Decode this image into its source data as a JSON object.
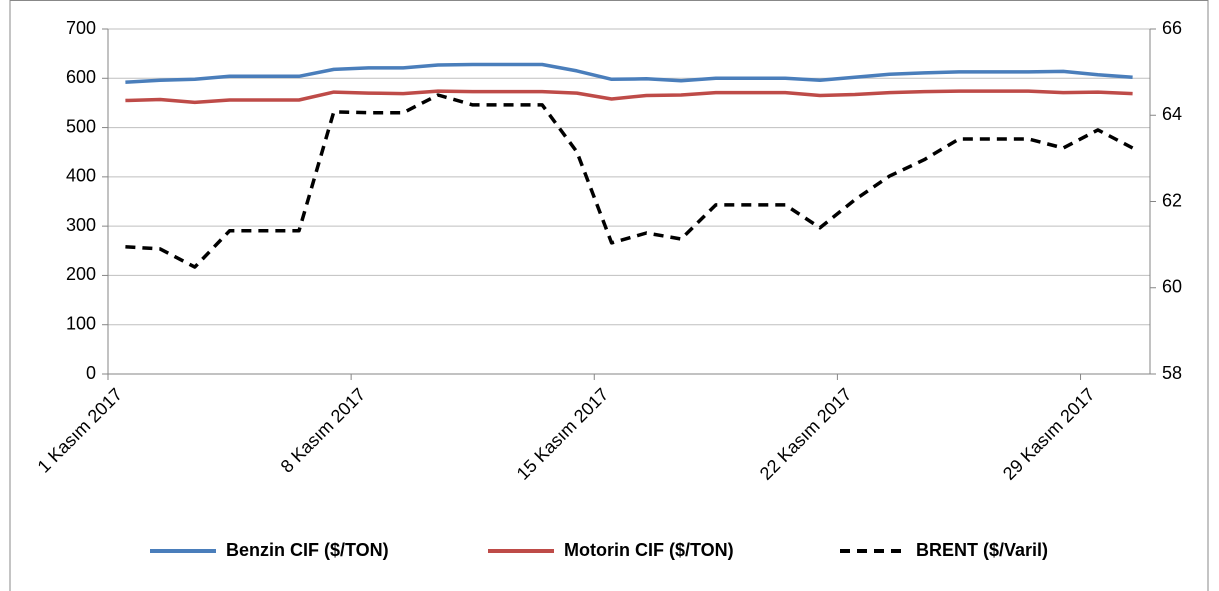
{
  "chart_data": {
    "type": "line",
    "x": [
      "2017-11-01",
      "2017-11-02",
      "2017-11-03",
      "2017-11-04",
      "2017-11-05",
      "2017-11-06",
      "2017-11-07",
      "2017-11-08",
      "2017-11-09",
      "2017-11-10",
      "2017-11-11",
      "2017-11-12",
      "2017-11-13",
      "2017-11-14",
      "2017-11-15",
      "2017-11-16",
      "2017-11-17",
      "2017-11-18",
      "2017-11-19",
      "2017-11-20",
      "2017-11-21",
      "2017-11-22",
      "2017-11-23",
      "2017-11-24",
      "2017-11-25",
      "2017-11-26",
      "2017-11-27",
      "2017-11-28",
      "2017-11-29",
      "2017-11-30"
    ],
    "xlim": [
      "2017-11-01",
      "2017-12-01"
    ],
    "xticks": [
      {
        "value": "2017-11-01",
        "label": "1 Kasım 2017"
      },
      {
        "value": "2017-11-08",
        "label": "8 Kasım 2017"
      },
      {
        "value": "2017-11-15",
        "label": "15 Kasım 2017"
      },
      {
        "value": "2017-11-22",
        "label": "22 Kasım 2017"
      },
      {
        "value": "2017-11-29",
        "label": "29 Kasım 2017"
      }
    ],
    "ylim": [
      0,
      700
    ],
    "yticks": [
      0,
      100,
      200,
      300,
      400,
      500,
      600,
      700
    ],
    "y2lim": [
      58,
      66
    ],
    "y2ticks": [
      58,
      60,
      62,
      64,
      66
    ],
    "grid": true,
    "legend": "bottom",
    "series": [
      {
        "name": "Benzin CIF ($/TON)",
        "color": "#4a7ebb",
        "axis": "y",
        "line_style": "solid",
        "values": [
          592,
          596,
          598,
          604,
          604,
          604,
          618,
          621,
          621,
          627,
          628,
          628,
          628,
          615,
          598,
          599,
          595,
          600,
          600,
          600,
          596,
          602,
          608,
          611,
          613,
          613,
          613,
          614,
          607,
          602
        ]
      },
      {
        "name": "Motorin CIF ($/TON)",
        "color": "#be4b48",
        "axis": "y",
        "line_style": "solid",
        "values": [
          555,
          557,
          551,
          556,
          556,
          556,
          572,
          570,
          569,
          574,
          573,
          573,
          573,
          570,
          558,
          565,
          566,
          571,
          571,
          571,
          565,
          567,
          571,
          573,
          574,
          574,
          574,
          571,
          572,
          569
        ]
      },
      {
        "name": "BRENT ($/Varil)",
        "color": "#000000",
        "axis": "y2",
        "line_style": "dashed",
        "values": [
          60.95,
          60.9,
          60.48,
          61.32,
          61.32,
          61.32,
          64.08,
          64.06,
          64.06,
          64.47,
          64.24,
          64.24,
          64.24,
          63.15,
          61.04,
          61.27,
          61.13,
          61.92,
          61.92,
          61.92,
          61.39,
          62.04,
          62.59,
          62.97,
          63.45,
          63.45,
          63.45,
          63.24,
          63.66,
          63.24
        ]
      }
    ]
  }
}
